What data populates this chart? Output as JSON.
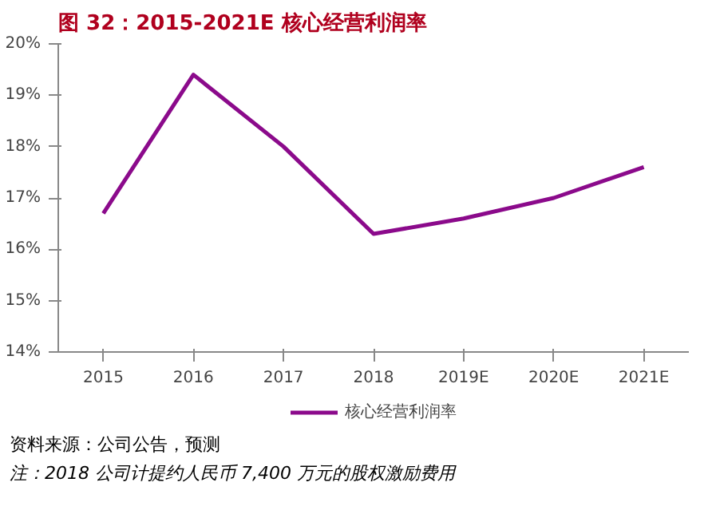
{
  "chart_data": {
    "type": "line",
    "title": "图 32：2015-2021E 核心经营利润率",
    "categories": [
      "2015",
      "2016",
      "2017",
      "2018",
      "2019E",
      "2020E",
      "2021E"
    ],
    "series": [
      {
        "name": "核心经营利润率",
        "color": "#8b0a8b",
        "values": [
          16.7,
          19.4,
          18.0,
          16.3,
          16.6,
          17.0,
          17.6
        ]
      }
    ],
    "ylim": [
      14,
      20
    ],
    "yticks": [
      {
        "value": 14,
        "label": "14%"
      },
      {
        "value": 15,
        "label": "15%"
      },
      {
        "value": 16,
        "label": "16%"
      },
      {
        "value": 17,
        "label": "17%"
      },
      {
        "value": 18,
        "label": "18%"
      },
      {
        "value": 19,
        "label": "19%"
      },
      {
        "value": 20,
        "label": "20%"
      }
    ],
    "grid": false,
    "legend": "bottom",
    "marker": "none",
    "line_style": "solid",
    "annotations": [
      "资料来源：公司公告，预测",
      "注：2018 公司计提约人民币 7,400 万元的股权激励费用"
    ]
  }
}
